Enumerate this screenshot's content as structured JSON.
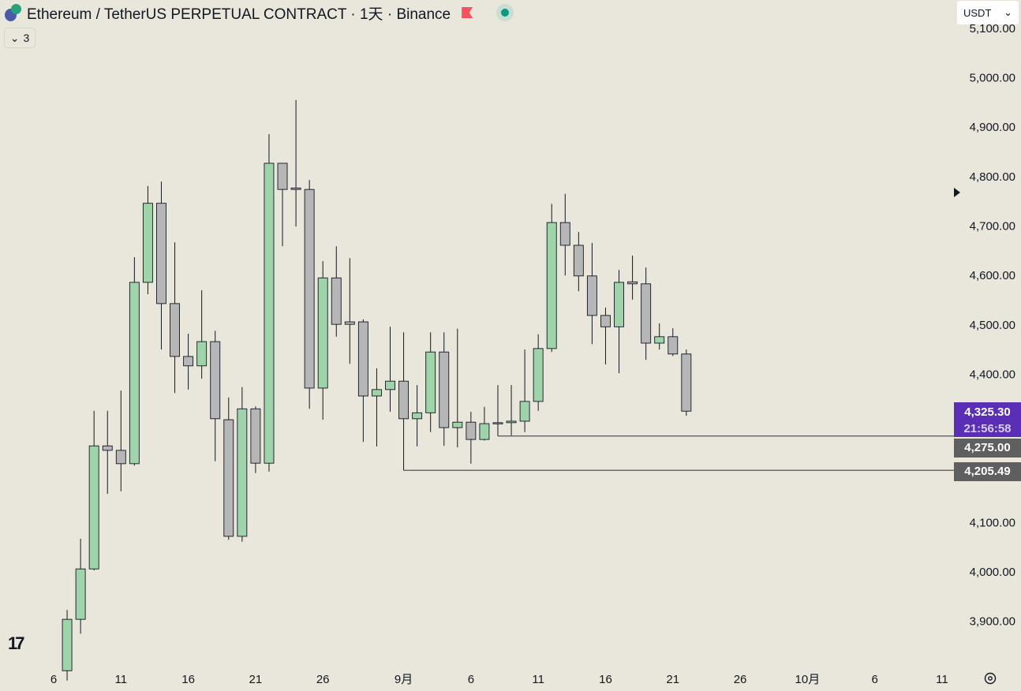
{
  "header": {
    "title": "Ethereum / TetherUS PERPETUAL CONTRACT · 1天 · Binance",
    "indicator_count": "3",
    "currency": "USDT",
    "colors": {
      "up": "#9fd3a9",
      "down": "#b6b6b6",
      "last_price_bg": "#5b2fb5",
      "level_bg": "#5f5f5f"
    }
  },
  "price_labels": {
    "last_price": "4,325.30",
    "countdown": "21:56:58",
    "level_1": "4,275.00",
    "level_2": "4,205.49"
  },
  "chart_data": {
    "type": "candlestick",
    "title": "Ethereum / TetherUS PERPETUAL CONTRACT · 1天 · Binance",
    "y_ticks": [
      "5,100.00",
      "5,000.00",
      "4,900.00",
      "4,800.00",
      "4,700.00",
      "4,600.00",
      "4,500.00",
      "4,400.00",
      "4,100.00",
      "4,000.00",
      "3,900.00"
    ],
    "y_tick_values": [
      5100,
      5000,
      4900,
      4800,
      4700,
      4600,
      4500,
      4400,
      4100,
      4000,
      3900
    ],
    "x_ticks": [
      {
        "label": "6",
        "day": 0
      },
      {
        "label": "11",
        "day": 5
      },
      {
        "label": "16",
        "day": 10
      },
      {
        "label": "21",
        "day": 15
      },
      {
        "label": "26",
        "day": 20
      },
      {
        "label": "9月",
        "day": 26
      },
      {
        "label": "6",
        "day": 31
      },
      {
        "label": "11",
        "day": 36
      },
      {
        "label": "16",
        "day": 41
      },
      {
        "label": "21",
        "day": 46
      },
      {
        "label": "26",
        "day": 51
      },
      {
        "label": "10月",
        "day": 56
      },
      {
        "label": "6",
        "day": 61
      },
      {
        "label": "11",
        "day": 66
      }
    ],
    "x_axis_start": "Aug 6",
    "horizontal_levels": [
      {
        "price": 4275.0,
        "from_day": 33
      },
      {
        "price": 4205.49,
        "from_day": 26
      }
    ],
    "last_price": 4325.3,
    "candles": [
      {
        "day": 1,
        "o": 3800,
        "h": 3923,
        "l": 3780,
        "c": 3904
      },
      {
        "day": 2,
        "o": 3904,
        "h": 4067,
        "l": 3875,
        "c": 4006
      },
      {
        "day": 3,
        "o": 4006,
        "h": 4326,
        "l": 4003,
        "c": 4255
      },
      {
        "day": 4,
        "o": 4255,
        "h": 4326,
        "l": 4158,
        "c": 4246
      },
      {
        "day": 5,
        "o": 4246,
        "h": 4367,
        "l": 4163,
        "c": 4219
      },
      {
        "day": 6,
        "o": 4219,
        "h": 4637,
        "l": 4215,
        "c": 4586
      },
      {
        "day": 7,
        "o": 4586,
        "h": 4781,
        "l": 4562,
        "c": 4746
      },
      {
        "day": 8,
        "o": 4746,
        "h": 4790,
        "l": 4450,
        "c": 4543
      },
      {
        "day": 9,
        "o": 4543,
        "h": 4667,
        "l": 4362,
        "c": 4436
      },
      {
        "day": 10,
        "o": 4436,
        "h": 4482,
        "l": 4369,
        "c": 4417
      },
      {
        "day": 11,
        "o": 4417,
        "h": 4570,
        "l": 4391,
        "c": 4466
      },
      {
        "day": 12,
        "o": 4466,
        "h": 4488,
        "l": 4224,
        "c": 4310
      },
      {
        "day": 13,
        "o": 4308,
        "h": 4353,
        "l": 4065,
        "c": 4072
      },
      {
        "day": 14,
        "o": 4072,
        "h": 4374,
        "l": 4061,
        "c": 4330
      },
      {
        "day": 15,
        "o": 4330,
        "h": 4335,
        "l": 4200,
        "c": 4220
      },
      {
        "day": 16,
        "o": 4220,
        "h": 4886,
        "l": 4203,
        "c": 4827
      },
      {
        "day": 17,
        "o": 4827,
        "h": 4827,
        "l": 4659,
        "c": 4774
      },
      {
        "day": 18,
        "o": 4777,
        "h": 4955,
        "l": 4699,
        "c": 4774
      },
      {
        "day": 19,
        "o": 4774,
        "h": 4793,
        "l": 4330,
        "c": 4372
      },
      {
        "day": 20,
        "o": 4372,
        "h": 4629,
        "l": 4308,
        "c": 4595
      },
      {
        "day": 21,
        "o": 4595,
        "h": 4659,
        "l": 4476,
        "c": 4501
      },
      {
        "day": 22,
        "o": 4506,
        "h": 4635,
        "l": 4421,
        "c": 4501
      },
      {
        "day": 23,
        "o": 4506,
        "h": 4511,
        "l": 4263,
        "c": 4356
      },
      {
        "day": 24,
        "o": 4356,
        "h": 4412,
        "l": 4254,
        "c": 4369
      },
      {
        "day": 25,
        "o": 4369,
        "h": 4496,
        "l": 4324,
        "c": 4386
      },
      {
        "day": 26,
        "o": 4386,
        "h": 4485,
        "l": 4205.49,
        "c": 4310
      },
      {
        "day": 27,
        "o": 4310,
        "h": 4378,
        "l": 4254,
        "c": 4322
      },
      {
        "day": 28,
        "o": 4322,
        "h": 4485,
        "l": 4283,
        "c": 4445
      },
      {
        "day": 29,
        "o": 4445,
        "h": 4485,
        "l": 4255,
        "c": 4292
      },
      {
        "day": 30,
        "o": 4292,
        "h": 4492,
        "l": 4252,
        "c": 4303
      },
      {
        "day": 31,
        "o": 4303,
        "h": 4324,
        "l": 4219,
        "c": 4268
      },
      {
        "day": 32,
        "o": 4268,
        "h": 4334,
        "l": 4266,
        "c": 4300
      },
      {
        "day": 33,
        "o": 4302,
        "h": 4378,
        "l": 4275,
        "c": 4300
      },
      {
        "day": 34,
        "o": 4302,
        "h": 4378,
        "l": 4276,
        "c": 4305
      },
      {
        "day": 35,
        "o": 4305,
        "h": 4450,
        "l": 4283,
        "c": 4345
      },
      {
        "day": 36,
        "o": 4345,
        "h": 4481,
        "l": 4326,
        "c": 4452
      },
      {
        "day": 37,
        "o": 4452,
        "h": 4745,
        "l": 4445,
        "c": 4707
      },
      {
        "day": 38,
        "o": 4707,
        "h": 4765,
        "l": 4600,
        "c": 4661
      },
      {
        "day": 39,
        "o": 4661,
        "h": 4688,
        "l": 4568,
        "c": 4599
      },
      {
        "day": 40,
        "o": 4599,
        "h": 4666,
        "l": 4461,
        "c": 4519
      },
      {
        "day": 41,
        "o": 4519,
        "h": 4535,
        "l": 4420,
        "c": 4496
      },
      {
        "day": 42,
        "o": 4496,
        "h": 4611,
        "l": 4402,
        "c": 4586
      },
      {
        "day": 43,
        "o": 4587,
        "h": 4640,
        "l": 4551,
        "c": 4583
      },
      {
        "day": 44,
        "o": 4583,
        "h": 4616,
        "l": 4429,
        "c": 4463
      },
      {
        "day": 45,
        "o": 4463,
        "h": 4503,
        "l": 4450,
        "c": 4476
      },
      {
        "day": 46,
        "o": 4476,
        "h": 4493,
        "l": 4437,
        "c": 4441
      },
      {
        "day": 47,
        "o": 4441,
        "h": 4450,
        "l": 4316,
        "c": 4325.3
      }
    ]
  }
}
